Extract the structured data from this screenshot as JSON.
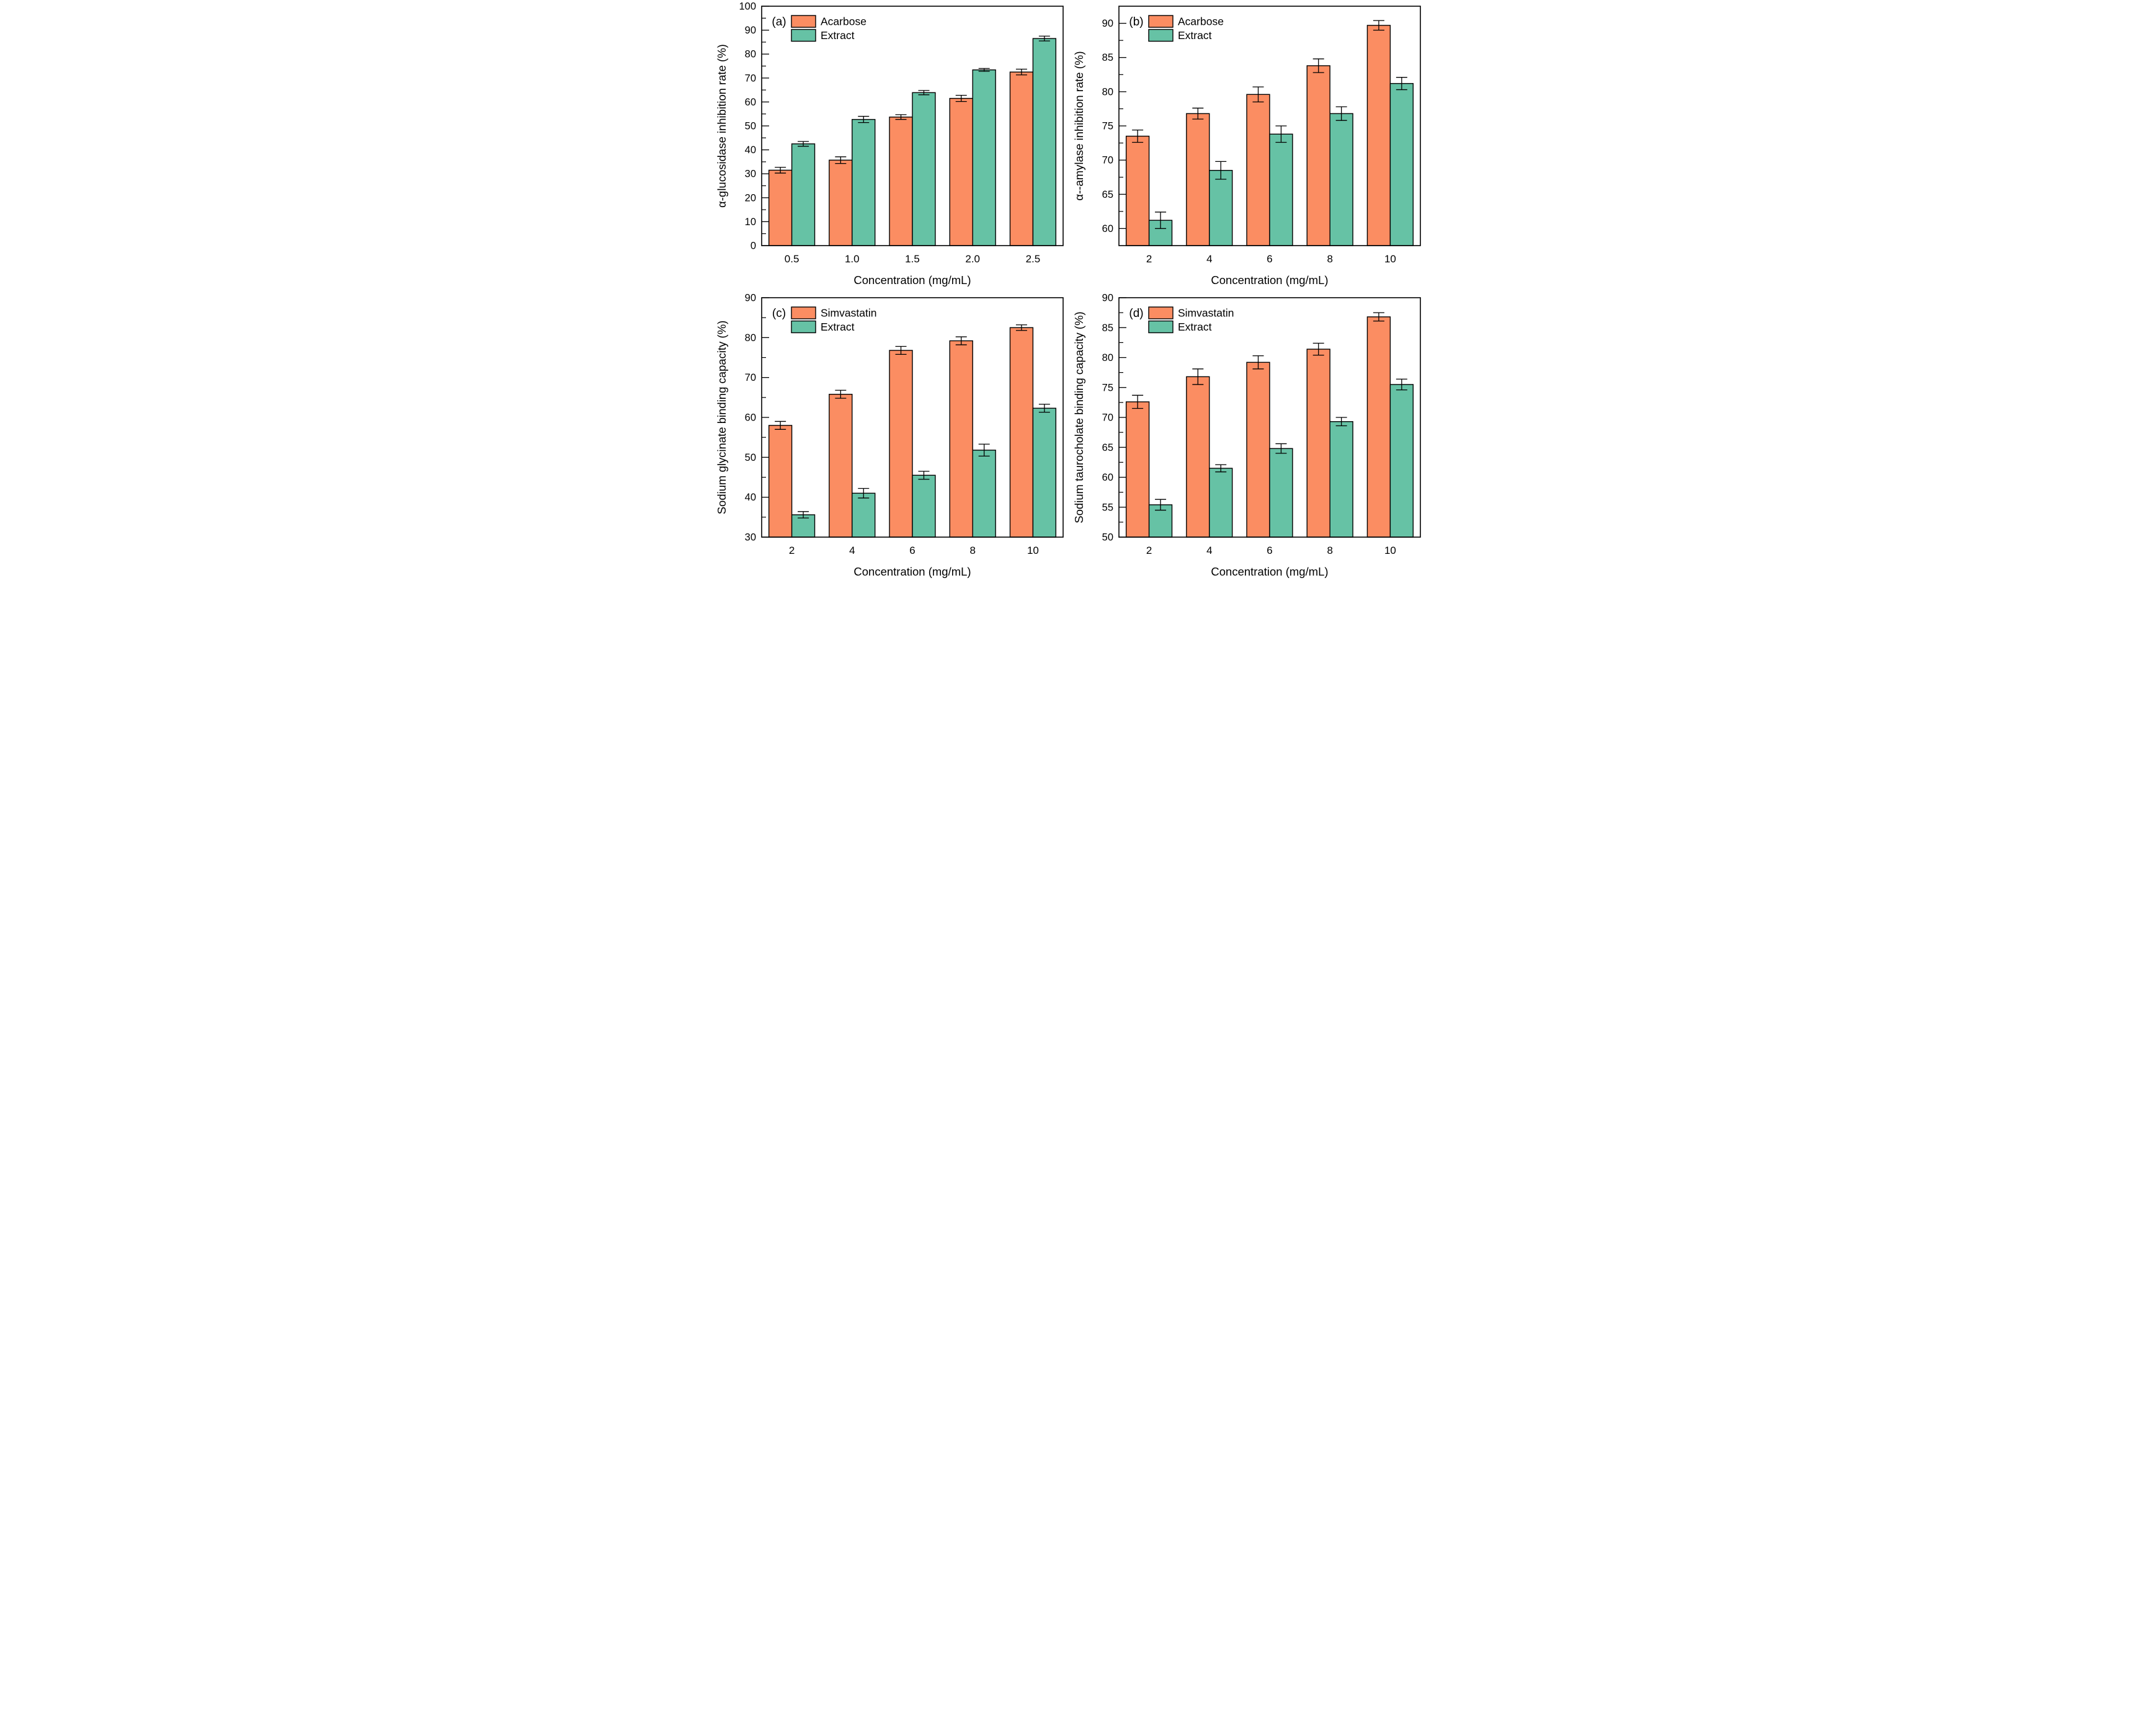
{
  "figure_title": "",
  "colors": {
    "bar_orange": "#FB8D62",
    "bar_green": "#66C2A5",
    "axis_black": "#000000",
    "background": "#FFFFFF"
  },
  "chart_data": [
    {
      "type": "bar",
      "label": "(a)",
      "xlabel": "Concentration (mg/mL)",
      "ylabel": "α-glucosidase inhibition rate (%)",
      "categories": [
        "0.5",
        "1.0",
        "1.5",
        "2.0",
        "2.5"
      ],
      "ylim": [
        0,
        100
      ],
      "ytick_major": 10,
      "grid": false,
      "legend_position": "top-left-inside",
      "series": [
        {
          "name": "Acarbose",
          "color": "#FB8D62",
          "values": [
            31.5,
            35.7,
            53.7,
            61.5,
            72.5
          ],
          "errors": [
            1.2,
            1.4,
            1.0,
            1.3,
            1.2
          ]
        },
        {
          "name": "Extract",
          "color": "#66C2A5",
          "values": [
            42.5,
            52.7,
            63.9,
            73.4,
            86.5
          ],
          "errors": [
            1.0,
            1.3,
            0.9,
            0.6,
            1.0
          ]
        }
      ]
    },
    {
      "type": "bar",
      "label": "(b)",
      "xlabel": "Concentration (mg/mL)",
      "ylabel": "α--amylase inhibition rate (%)",
      "categories": [
        "2",
        "4",
        "6",
        "8",
        "10"
      ],
      "ylim": [
        57.5,
        92.5
      ],
      "ytick_major": 5,
      "grid": false,
      "legend_position": "top-left-inside",
      "series": [
        {
          "name": "Acarbose",
          "color": "#FB8D62",
          "values": [
            73.5,
            76.8,
            79.6,
            83.8,
            89.7
          ],
          "errors": [
            0.9,
            0.8,
            1.1,
            1.0,
            0.7
          ]
        },
        {
          "name": "Extract",
          "color": "#66C2A5",
          "values": [
            61.2,
            68.5,
            73.8,
            76.8,
            81.2
          ],
          "errors": [
            1.2,
            1.3,
            1.2,
            1.0,
            0.9
          ]
        }
      ]
    },
    {
      "type": "bar",
      "label": "(c)",
      "xlabel": "Concentration (mg/mL)",
      "ylabel": "Sodium glycinate binding capacity (%)",
      "categories": [
        "2",
        "4",
        "6",
        "8",
        "10"
      ],
      "ylim": [
        30,
        90
      ],
      "ytick_major": 10,
      "grid": false,
      "legend_position": "top-left-inside",
      "series": [
        {
          "name": "Simvastatin",
          "color": "#FB8D62",
          "values": [
            58.0,
            65.8,
            76.8,
            79.2,
            82.5
          ],
          "errors": [
            1.0,
            1.0,
            1.0,
            1.0,
            0.7
          ]
        },
        {
          "name": "Extract",
          "color": "#66C2A5",
          "values": [
            35.6,
            41.0,
            45.5,
            51.8,
            62.3
          ],
          "errors": [
            0.8,
            1.2,
            1.0,
            1.5,
            1.0
          ]
        }
      ]
    },
    {
      "type": "bar",
      "label": "(d)",
      "xlabel": "Concentration (mg/mL)",
      "ylabel": "Sodium taurocholate binding capacity (%)",
      "categories": [
        "2",
        "4",
        "6",
        "8",
        "10"
      ],
      "ylim": [
        50,
        90
      ],
      "ytick_major": 5,
      "grid": false,
      "legend_position": "top-left-inside",
      "series": [
        {
          "name": "Simvastatin",
          "color": "#FB8D62",
          "values": [
            72.6,
            76.8,
            79.2,
            81.4,
            86.8
          ],
          "errors": [
            1.1,
            1.3,
            1.1,
            1.0,
            0.7
          ]
        },
        {
          "name": "Extract",
          "color": "#66C2A5",
          "values": [
            55.4,
            61.5,
            64.8,
            69.3,
            75.5
          ],
          "errors": [
            0.9,
            0.6,
            0.8,
            0.7,
            0.9
          ]
        }
      ]
    }
  ]
}
